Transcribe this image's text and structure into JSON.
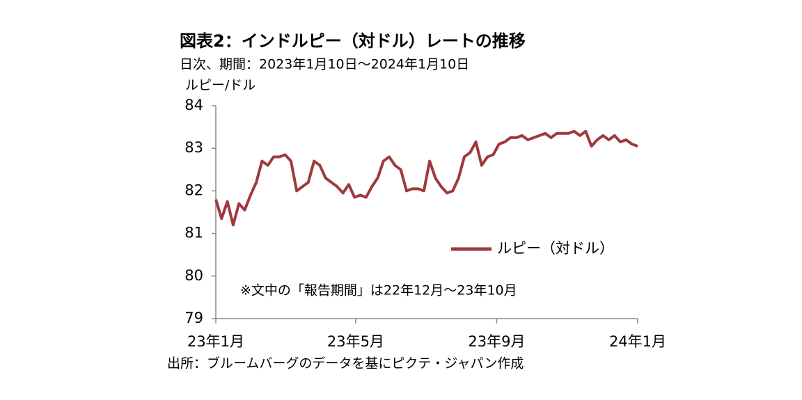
{
  "chart_data": {
    "type": "line",
    "title": "図表2：インドルピー（対ドル）レートの推移",
    "subtitle": "日次、期間：2023年1月10日～2024年1月10日",
    "ylabel": "ルピー/ドル",
    "annotation": "※文中の「報告期間」は22年12月～23年10月",
    "source": "出所：ブルームバーグのデータを基にピクテ・ジャパン作成",
    "x": [
      9,
      14,
      19,
      24,
      29,
      34,
      39,
      44,
      49,
      54,
      59,
      64,
      69,
      74,
      79,
      84,
      89,
      94,
      99,
      104,
      109,
      114,
      119,
      124,
      129,
      134,
      139,
      144,
      149,
      154,
      159,
      164,
      169,
      174,
      179,
      184,
      189,
      194,
      199,
      204,
      209,
      214,
      219,
      224,
      229,
      234,
      239,
      244,
      249,
      254,
      259,
      264,
      269,
      274,
      279,
      284,
      289,
      294,
      299,
      304,
      309,
      314,
      319,
      324,
      329,
      334,
      339,
      344,
      349,
      354,
      359,
      364,
      369,
      374
    ],
    "series": [
      {
        "name": "ルピー（対ドル）",
        "color": "#9e3a3d",
        "values": [
          81.8,
          81.35,
          81.75,
          81.2,
          81.7,
          81.55,
          81.9,
          82.2,
          82.7,
          82.6,
          82.8,
          82.8,
          82.85,
          82.7,
          82.0,
          82.1,
          82.2,
          82.7,
          82.6,
          82.3,
          82.2,
          82.1,
          81.95,
          82.15,
          81.85,
          81.9,
          81.85,
          82.1,
          82.3,
          82.7,
          82.8,
          82.6,
          82.5,
          82.0,
          82.05,
          82.05,
          82.0,
          82.7,
          82.3,
          82.1,
          81.95,
          82.0,
          82.3,
          82.8,
          82.9,
          83.15,
          82.6,
          82.8,
          82.85,
          83.1,
          83.15,
          83.25,
          83.25,
          83.3,
          83.2,
          83.25,
          83.3,
          83.35,
          83.25,
          83.35,
          83.35,
          83.35,
          83.4,
          83.3,
          83.4,
          83.05,
          83.2,
          83.3,
          83.2,
          83.3,
          83.15,
          83.2,
          83.1,
          83.05
        ]
      }
    ],
    "xlim": [
      9,
      374
    ],
    "xticks": [
      {
        "value": 9,
        "label": "23年1月"
      },
      {
        "value": 130,
        "label": "23年5月"
      },
      {
        "value": 252,
        "label": "23年9月"
      },
      {
        "value": 374,
        "label": "24年1月"
      }
    ],
    "ylim": [
      79,
      84
    ],
    "yticks": [
      79,
      80,
      81,
      82,
      83,
      84
    ],
    "grid": false,
    "legend": "right"
  }
}
